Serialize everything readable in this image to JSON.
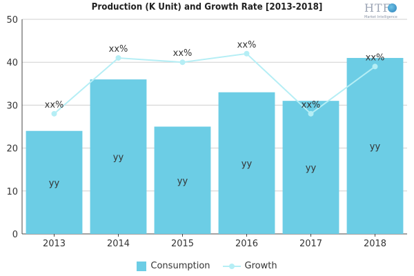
{
  "chart_data": {
    "type": "bar",
    "title": "Production (K Unit) and Growth Rate [2013-2018]",
    "categories": [
      "2013",
      "2014",
      "2015",
      "2016",
      "2017",
      "2018"
    ],
    "series": [
      {
        "name": "Consumption",
        "type": "bar",
        "values": [
          24,
          36,
          25,
          33,
          31,
          41
        ],
        "data_label": "yy",
        "color": "#6ccde5"
      },
      {
        "name": "Growth",
        "type": "line",
        "values": [
          28,
          41,
          40,
          42,
          28,
          39
        ],
        "data_label": "xx%",
        "color": "#b5eef5"
      }
    ],
    "ylim": [
      0,
      50
    ],
    "yticks": [
      0,
      10,
      20,
      30,
      40,
      50
    ],
    "grid": true,
    "legend": "bottom"
  },
  "logo": {
    "text": "HTF",
    "subtext": "Market Intelligence"
  }
}
